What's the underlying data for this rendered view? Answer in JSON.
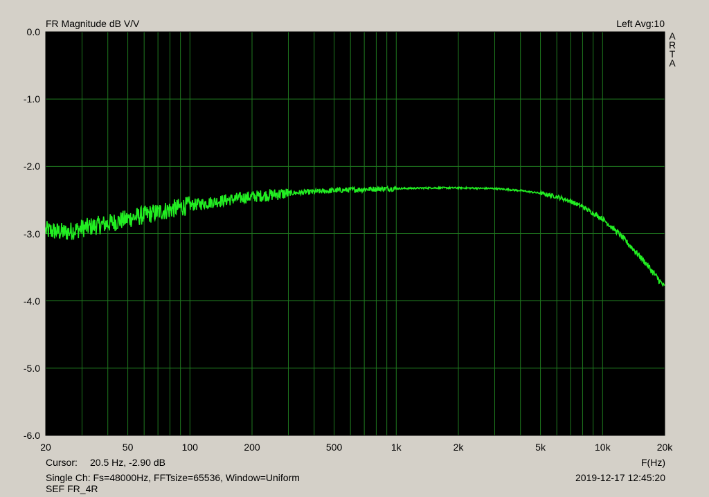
{
  "header": {
    "title": "FR Magnitude dB V/V",
    "right": "Left  Avg:10",
    "brand": "ARTA"
  },
  "footer": {
    "cursor_label": "Cursor:",
    "cursor_value": "20.5 Hz, -2.90 dB",
    "x_unit": "F(Hz)",
    "info": "Single Ch: Fs=48000Hz, FFTsize=65536, Window=Uniform",
    "datetime": "2019-12-17  12:45:20",
    "filename": "SEF FR_4R"
  },
  "colors": {
    "background": "#d4d0c8",
    "plot_bg": "#000000",
    "grid": "#1f7a1f",
    "trace": "#22ee22"
  },
  "chart_data": {
    "type": "line",
    "title": "FR Magnitude dB V/V",
    "xlabel": "F(Hz)",
    "ylabel": "dB V/V",
    "xscale": "log",
    "xlim": [
      20,
      20000
    ],
    "ylim": [
      -6.0,
      0.0
    ],
    "grid": true,
    "x_ticks": [
      20,
      50,
      100,
      200,
      500,
      1000,
      2000,
      5000,
      10000,
      20000
    ],
    "x_tick_labels": [
      "20",
      "50",
      "100",
      "200",
      "500",
      "1k",
      "2k",
      "5k",
      "10k",
      "20k"
    ],
    "y_ticks": [
      0,
      -1,
      -2,
      -3,
      -4,
      -5,
      -6
    ],
    "y_tick_labels": [
      "0.0",
      "-1.0",
      "-2.0",
      "-3.0",
      "-4.0",
      "-5.0",
      "-6.0"
    ],
    "series": [
      {
        "name": "",
        "x": [
          20,
          25,
          30,
          40,
          50,
          70,
          100,
          150,
          200,
          300,
          500,
          700,
          1000,
          1500,
          2000,
          3000,
          4000,
          5000,
          6000,
          7000,
          8000,
          10000,
          12000,
          14000,
          16000,
          18000,
          20000
        ],
        "y": [
          -2.95,
          -2.98,
          -2.92,
          -2.85,
          -2.78,
          -2.68,
          -2.58,
          -2.5,
          -2.45,
          -2.4,
          -2.36,
          -2.34,
          -2.33,
          -2.32,
          -2.32,
          -2.33,
          -2.36,
          -2.4,
          -2.45,
          -2.52,
          -2.6,
          -2.78,
          -3.0,
          -3.22,
          -3.42,
          -3.62,
          -3.8
        ]
      }
    ]
  }
}
